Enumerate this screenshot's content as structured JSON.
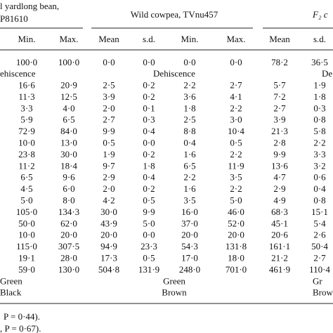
{
  "header": {
    "group_left": [
      "l yardlong bean,",
      "P81610"
    ],
    "group_middle": "Wild cowpea, TVnu457",
    "group_right": "F₂ c",
    "columns": [
      "Min.",
      "Max.",
      "Mean",
      "s.d.",
      "Min.",
      "Max.",
      "Mean",
      "s.d."
    ]
  },
  "rows": [
    {
      "cells": [
        "100·0",
        "100·0",
        "0·0",
        "0·0",
        "0·0",
        "0·0",
        "78·2",
        "36·5"
      ]
    },
    {
      "labels": [
        "ehiscence",
        "Dehiscence",
        "De"
      ]
    },
    {
      "cells": [
        "16·6",
        "20·9",
        "2·5",
        "0·2",
        "2·2",
        "2·7",
        "5·7",
        "1·9"
      ]
    },
    {
      "cells": [
        "11·3",
        "12·5",
        "3·9",
        "0·2",
        "3·6",
        "4·1",
        "7·2",
        "1·8"
      ]
    },
    {
      "cells": [
        "3·3",
        "4·0",
        "2·0",
        "0·1",
        "1·8",
        "2·2",
        "2·7",
        "0·3"
      ]
    },
    {
      "cells": [
        "5·9",
        "6·5",
        "2·7",
        "0·3",
        "2·5",
        "3·0",
        "3·9",
        "0·8"
      ]
    },
    {
      "cells": [
        "72·9",
        "84·0",
        "9·9",
        "0·4",
        "8·8",
        "10·4",
        "21·3",
        "5·8"
      ]
    },
    {
      "cells": [
        "10·0",
        "13·0",
        "0·5",
        "0·0",
        "0·4",
        "0·5",
        "2·8",
        "2·2"
      ]
    },
    {
      "cells": [
        "23·8",
        "30·0",
        "1·9",
        "0·2",
        "1·6",
        "2·2",
        "9·9",
        "3·3"
      ]
    },
    {
      "cells": [
        "11·2",
        "18·4",
        "9·7",
        "1·8",
        "6·5",
        "11·9",
        "13·6",
        "3·2"
      ]
    },
    {
      "cells": [
        "6·5",
        "9·6",
        "2·9",
        "0·4",
        "2·2",
        "3·5",
        "4·7",
        "0·6"
      ]
    },
    {
      "cells": [
        "4·5",
        "6·0",
        "2·0",
        "0·2",
        "1·6",
        "2·2",
        "2·9",
        "0·4"
      ]
    },
    {
      "cells": [
        "5·0",
        "8·0",
        "4·2",
        "0·5",
        "3·5",
        "5·0",
        "4·9",
        "0·8"
      ]
    },
    {
      "cells": [
        "105·0",
        "134·3",
        "30·0",
        "9·9",
        "16·0",
        "46·0",
        "68·3",
        "15·1"
      ]
    },
    {
      "cells": [
        "50·0",
        "62·0",
        "43·9",
        "5·0",
        "37·0",
        "52·0",
        "45·1",
        "5·4"
      ]
    },
    {
      "cells": [
        "10·0",
        "20·0",
        "20·0",
        "0·0",
        "20·0",
        "20·0",
        "20·6",
        "2·6"
      ]
    },
    {
      "cells": [
        "115·0",
        "307·5",
        "94·9",
        "23·3",
        "54·3",
        "131·8",
        "161·1",
        "50·4"
      ]
    },
    {
      "cells": [
        "19·1",
        "28·0",
        "17·3",
        "0·5",
        "17·0",
        "18·0",
        "21·2",
        "2·7"
      ]
    },
    {
      "cells": [
        "59·0",
        "130·0",
        "504·8",
        "131·9",
        "248·0",
        "701·0",
        "461·9",
        "110·4"
      ]
    },
    {
      "labels": [
        "Green",
        "Green",
        "Gr"
      ]
    },
    {
      "labels": [
        "Black",
        "Brown",
        "Brown"
      ]
    }
  ],
  "footnotes": [
    "P = 0·44).",
    ", P = 0·67)."
  ]
}
